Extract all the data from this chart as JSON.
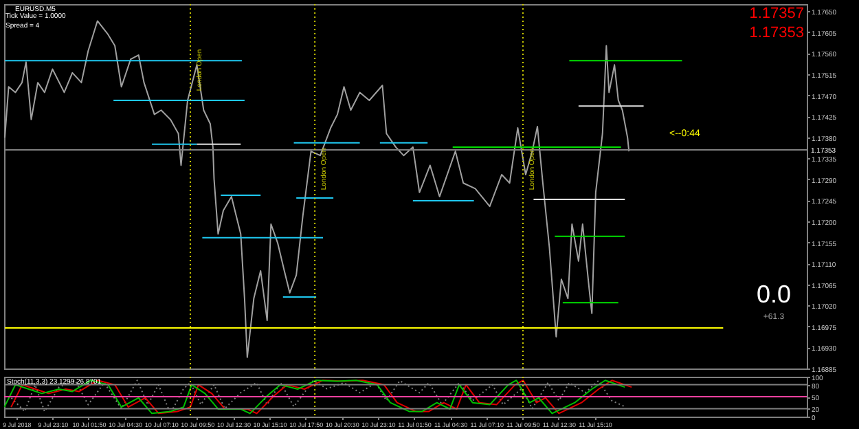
{
  "chart_data": [
    {
      "type": "line",
      "title": "EURUSD.M5",
      "annotations": [
        "Tick Value = 1.0000",
        "Spread = 4",
        "1.17357",
        "1.17353",
        "<--0:44",
        "0.0",
        "+61.3"
      ],
      "xlim": [
        "2018-07-09T19:36",
        "2018-07-12T06:48"
      ],
      "ylim": [
        1.16885,
        1.17665
      ],
      "yticks": [
        {
          "value": 1.1765,
          "label": "1.17650"
        },
        {
          "value": 1.17605,
          "label": "1.17605"
        },
        {
          "value": 1.1756,
          "label": "1.17560"
        },
        {
          "value": 1.17515,
          "label": "1.17515"
        },
        {
          "value": 1.1747,
          "label": "1.17470"
        },
        {
          "value": 1.17425,
          "label": "1.17425"
        },
        {
          "value": 1.1738,
          "label": "1.17380"
        },
        {
          "value": 1.17335,
          "label": "1.17335"
        },
        {
          "value": 1.1729,
          "label": "1.17290"
        },
        {
          "value": 1.17245,
          "label": "1.17245"
        },
        {
          "value": 1.172,
          "label": "1.17200"
        },
        {
          "value": 1.17155,
          "label": "1.17155"
        },
        {
          "value": 1.1711,
          "label": "1.17110"
        },
        {
          "value": 1.17065,
          "label": "1.17065"
        },
        {
          "value": 1.1702,
          "label": "1.17020"
        },
        {
          "value": 1.16975,
          "label": "1.16975"
        },
        {
          "value": 1.1693,
          "label": "1.16930"
        },
        {
          "value": 1.16885,
          "label": "1.16885"
        }
      ],
      "tick_labels": "y",
      "series": [
        {
          "color": "#a0a0a0",
          "x": [
            "2018-07-09T19:39",
            "2018-07-09T19:56",
            "2018-07-09T20:26",
            "2018-07-09T20:55",
            "2018-07-09T21:13",
            "2018-07-09T21:36",
            "2018-07-09T22:05",
            "2018-07-09T22:35",
            "2018-07-09T23:10",
            "2018-07-10T00:02",
            "2018-07-10T00:38",
            "2018-07-10T01:18",
            "2018-07-10T01:48",
            "2018-07-10T02:29",
            "2018-07-10T03:16",
            "2018-07-10T03:46",
            "2018-07-10T04:15",
            "2018-07-10T04:56",
            "2018-07-10T05:31",
            "2018-07-10T05:55",
            "2018-07-10T06:41",
            "2018-07-10T07:11",
            "2018-07-10T07:52",
            "2018-07-10T08:27",
            "2018-07-10T08:39",
            "2018-07-10T09:08",
            "2018-07-10T09:49",
            "2018-07-10T10:19",
            "2018-07-10T10:48",
            "2018-07-10T11:00",
            "2018-07-10T11:05",
            "2018-07-10T11:23",
            "2018-07-10T11:46",
            "2018-07-10T12:22",
            "2018-07-10T13:03",
            "2018-07-10T13:20",
            "2018-07-10T13:32",
            "2018-07-10T14:01",
            "2018-07-10T14:31",
            "2018-07-10T15:00",
            "2018-07-10T15:17",
            "2018-07-10T15:47",
            "2018-07-10T16:16",
            "2018-07-10T16:40",
            "2018-07-10T17:09",
            "2018-07-10T17:38",
            "2018-07-10T18:14",
            "2018-07-10T18:55",
            "2018-07-10T19:41",
            "2018-07-10T20:11",
            "2018-07-10T20:40",
            "2018-07-10T21:10",
            "2018-07-10T21:50",
            "2018-07-10T22:32",
            "2018-07-10T23:30",
            "2018-07-10T23:48",
            "2018-07-11T00:29",
            "2018-07-11T01:04",
            "2018-07-11T01:45",
            "2018-07-11T02:14",
            "2018-07-11T03:01",
            "2018-07-11T03:43",
            "2018-07-11T04:53",
            "2018-07-11T05:28",
            "2018-07-11T06:21",
            "2018-07-11T07:25",
            "2018-07-11T08:18",
            "2018-07-11T08:53",
            "2018-07-11T09:29",
            "2018-07-11T10:04",
            "2018-07-11T10:33",
            "2018-07-11T10:56",
            "2018-07-11T11:20",
            "2018-07-11T11:49",
            "2018-07-11T12:19",
            "2018-07-11T12:42",
            "2018-07-11T13:11",
            "2018-07-11T13:29",
            "2018-07-11T13:58",
            "2018-07-11T14:16",
            "2018-07-11T14:45",
            "2018-07-11T14:57",
            "2018-07-11T15:14",
            "2018-07-11T15:44",
            "2018-07-11T16:01",
            "2018-07-11T16:13",
            "2018-07-11T16:37",
            "2018-07-11T16:54",
            "2018-07-11T17:12",
            "2018-07-11T17:35",
            "2018-07-11T17:41"
          ],
          "values": [
            1.17379,
            1.17488,
            1.17476,
            1.17497,
            1.17541,
            1.17418,
            1.17497,
            1.17476,
            1.17526,
            1.17476,
            1.17518,
            1.17497,
            1.17565,
            1.17629,
            1.176,
            1.17576,
            1.17488,
            1.17547,
            1.17556,
            1.17497,
            1.17429,
            1.17438,
            1.17418,
            1.17388,
            1.1732,
            1.17459,
            1.17535,
            1.17438,
            1.17409,
            1.17359,
            1.17291,
            1.17173,
            1.17223,
            1.17253,
            1.17173,
            1.17035,
            1.16909,
            1.17035,
            1.17094,
            1.16988,
            1.17194,
            1.17153,
            1.17094,
            1.17047,
            1.17085,
            1.17212,
            1.1735,
            1.17341,
            1.174,
            1.17429,
            1.17488,
            1.17438,
            1.17476,
            1.17459,
            1.17491,
            1.17388,
            1.17359,
            1.17341,
            1.17359,
            1.17262,
            1.1732,
            1.17253,
            1.1735,
            1.17282,
            1.1727,
            1.17232,
            1.173,
            1.17282,
            1.174,
            1.173,
            1.1735,
            1.17403,
            1.17282,
            1.17144,
            1.16953,
            1.17076,
            1.17035,
            1.17194,
            1.17115,
            1.17194,
            1.17056,
            1.17003,
            1.17262,
            1.17388,
            1.17576,
            1.17476,
            1.17535,
            1.17459,
            1.17438,
            1.17379,
            1.1735
          ]
        },
        {
          "color": "#1ec8f0",
          "x": [
            "2018-07-09T19:39",
            "2018-07-10T13:08"
          ],
          "values": [
            1.17544,
            1.17544
          ]
        },
        {
          "color": "#1ec8f0",
          "x": [
            "2018-07-10T03:40",
            "2018-07-10T13:20"
          ],
          "values": [
            1.17459,
            1.17459
          ]
        },
        {
          "color": "#1ec8f0",
          "x": [
            "2018-07-10T06:30",
            "2018-07-10T09:49"
          ],
          "values": [
            1.17365,
            1.17365
          ]
        },
        {
          "color": "#e0e0e0",
          "x": [
            "2018-07-10T09:49",
            "2018-07-10T13:03"
          ],
          "values": [
            1.17365,
            1.17365
          ]
        },
        {
          "color": "#1ec8f0",
          "x": [
            "2018-07-10T11:35",
            "2018-07-10T14:31"
          ],
          "values": [
            1.17256,
            1.17256
          ]
        },
        {
          "color": "#1ec8f0",
          "x": [
            "2018-07-10T10:13",
            "2018-07-10T19:07"
          ],
          "values": [
            1.17165,
            1.17165
          ]
        },
        {
          "color": "#1ec8f0",
          "x": [
            "2018-07-10T16:10",
            "2018-07-10T18:37"
          ],
          "values": [
            1.17038,
            1.17038
          ]
        },
        {
          "color": "#1ec8f0",
          "x": [
            "2018-07-10T17:09",
            "2018-07-10T19:53"
          ],
          "values": [
            1.1725,
            1.1725
          ]
        },
        {
          "color": "#1ec8f0",
          "x": [
            "2018-07-10T16:58",
            "2018-07-10T21:50"
          ],
          "values": [
            1.17368,
            1.17368
          ]
        },
        {
          "color": "#1ec8f0",
          "x": [
            "2018-07-10T23:19",
            "2018-07-11T02:50"
          ],
          "values": [
            1.17368,
            1.17368
          ]
        },
        {
          "color": "#1ec8f0",
          "x": [
            "2018-07-11T01:45",
            "2018-07-11T06:15"
          ],
          "values": [
            1.17244,
            1.17244
          ]
        },
        {
          "color": "#00e000",
          "x": [
            "2018-07-11T04:41",
            "2018-07-11T17:06"
          ],
          "values": [
            1.17359,
            1.17359
          ]
        },
        {
          "color": "#00e000",
          "x": [
            "2018-07-11T13:17",
            "2018-07-11T21:36"
          ],
          "values": [
            1.17544,
            1.17544
          ]
        },
        {
          "color": "#e0e0e0",
          "x": [
            "2018-07-11T13:58",
            "2018-07-11T18:46"
          ],
          "values": [
            1.17447,
            1.17447
          ]
        },
        {
          "color": "#e0e0e0",
          "x": [
            "2018-07-11T10:39",
            "2018-07-11T17:23"
          ],
          "values": [
            1.17247,
            1.17247
          ]
        },
        {
          "color": "#00e000",
          "x": [
            "2018-07-11T12:13",
            "2018-07-11T17:23"
          ],
          "values": [
            1.17168,
            1.17168
          ]
        },
        {
          "color": "#00e000",
          "x": [
            "2018-07-11T12:48",
            "2018-07-11T16:54"
          ],
          "values": [
            1.17026,
            1.17026
          ]
        },
        {
          "color": "#ffff00",
          "x": [
            "2018-07-09T19:39",
            "2018-07-12T00:38"
          ],
          "values": [
            1.16972,
            1.16972
          ]
        }
      ],
      "ref_lines": [
        {
          "axis": "y",
          "value": 1.17353,
          "label": "1.17353",
          "color": "#808080"
        },
        {
          "axis": "x",
          "value": "2018-07-10T09:20",
          "label": "London Open",
          "color": "#c8c800",
          "line_style": "dotted"
        },
        {
          "axis": "x",
          "value": "2018-07-10T18:31",
          "label": "London Open",
          "color": "#c8c800",
          "line_style": "dotted"
        },
        {
          "axis": "x",
          "value": "2018-07-11T09:52",
          "label": "London Open",
          "color": "#c8c800",
          "line_style": "dotted"
        }
      ]
    },
    {
      "type": "line",
      "title": "Stoch(11,3,3) 23.1299 26.8701",
      "xlim": [
        "2018-07-09T19:36",
        "2018-07-12T06:48"
      ],
      "ylim": [
        0,
        100
      ],
      "yticks": [
        0,
        20,
        50,
        80,
        100
      ],
      "xticks": [
        {
          "value": "2018-07-09T20:30",
          "label": "9 Jul 2018"
        },
        {
          "value": "2018-07-09T23:10",
          "label": "9 Jul 23:10"
        },
        {
          "value": "2018-07-10T01:50",
          "label": "10 Jul 01:50"
        },
        {
          "value": "2018-07-10T04:30",
          "label": "10 Jul 04:30"
        },
        {
          "value": "2018-07-10T07:10",
          "label": "10 Jul 07:10"
        },
        {
          "value": "2018-07-10T09:50",
          "label": "10 Jul 09:50"
        },
        {
          "value": "2018-07-10T12:30",
          "label": "10 Jul 12:30"
        },
        {
          "value": "2018-07-10T15:10",
          "label": "10 Jul 15:10"
        },
        {
          "value": "2018-07-10T17:50",
          "label": "10 Jul 17:50"
        },
        {
          "value": "2018-07-10T20:30",
          "label": "10 Jul 20:30"
        },
        {
          "value": "2018-07-10T23:10",
          "label": "10 Jul 23:10"
        },
        {
          "value": "2018-07-11T01:50",
          "label": "11 Jul 01:50"
        },
        {
          "value": "2018-07-11T04:30",
          "label": "11 Jul 04:30"
        },
        {
          "value": "2018-07-11T07:10",
          "label": "11 Jul 07:10"
        },
        {
          "value": "2018-07-11T09:50",
          "label": "11 Jul 09:50"
        },
        {
          "value": "2018-07-11T12:30",
          "label": "11 Jul 12:30"
        },
        {
          "value": "2018-07-11T15:10",
          "label": "11 Jul 15:10"
        }
      ],
      "series": [
        {
          "color": "#808080",
          "line_style": "dotted",
          "x": [
            "2018-07-09T20:08",
            "2018-07-09T21:07",
            "2018-07-09T21:53",
            "2018-07-09T22:35",
            "2018-07-09T23:39",
            "2018-07-10T00:50",
            "2018-07-10T01:48",
            "2018-07-10T02:59",
            "2018-07-10T04:15",
            "2018-07-10T05:25",
            "2018-07-10T06:12",
            "2018-07-10T06:59",
            "2018-07-10T07:52",
            "2018-07-10T08:50",
            "2018-07-10T09:20",
            "2018-07-10T10:07",
            "2018-07-10T11:05",
            "2018-07-10T11:52",
            "2018-07-10T13:03",
            "2018-07-10T14:13",
            "2018-07-10T15:00",
            "2018-07-10T15:59",
            "2018-07-10T16:58",
            "2018-07-10T18:25",
            "2018-07-10T19:24",
            "2018-07-10T20:40",
            "2018-07-10T21:50",
            "2018-07-10T23:01",
            "2018-07-10T23:48",
            "2018-07-11T00:47",
            "2018-07-11T02:14",
            "2018-07-11T02:56",
            "2018-07-11T03:54",
            "2018-07-11T05:10",
            "2018-07-11T06:09",
            "2018-07-11T07:37",
            "2018-07-11T08:24",
            "2018-07-11T09:46",
            "2018-07-11T10:33",
            "2018-07-11T11:43",
            "2018-07-11T12:31",
            "2018-07-11T13:17",
            "2018-07-11T14:28",
            "2018-07-11T15:26",
            "2018-07-11T16:25",
            "2018-07-11T17:23"
          ],
          "values": [
            47,
            13,
            80,
            13,
            74,
            91,
            30,
            85,
            20,
            91,
            30,
            80,
            8,
            70,
            85,
            30,
            80,
            20,
            60,
            85,
            30,
            85,
            25,
            91,
            70,
            85,
            60,
            85,
            40,
            90,
            60,
            85,
            30,
            85,
            40,
            80,
            30,
            70,
            20,
            85,
            40,
            85,
            60,
            90,
            40,
            25
          ]
        },
        {
          "color": "#e00000",
          "x": [
            "2018-07-09T20:07",
            "2018-07-09T20:56",
            "2018-07-09T21:55",
            "2018-07-09T22:53",
            "2018-07-10T00:09",
            "2018-07-10T01:08",
            "2018-07-10T02:30",
            "2018-07-10T03:46",
            "2018-07-10T04:45",
            "2018-07-10T06:01",
            "2018-07-10T07:00",
            "2018-07-10T08:22",
            "2018-07-10T09:20",
            "2018-07-10T09:56",
            "2018-07-10T10:55",
            "2018-07-10T11:53",
            "2018-07-10T13:33",
            "2018-07-10T14:14",
            "2018-07-10T15:30",
            "2018-07-10T16:29",
            "2018-07-10T17:45",
            "2018-07-10T19:07",
            "2018-07-10T20:41",
            "2018-07-10T22:03",
            "2018-07-10T23:37",
            "2018-07-11T00:35",
            "2018-07-11T01:58",
            "2018-07-11T02:56",
            "2018-07-11T04:01",
            "2018-07-11T04:59",
            "2018-07-11T05:40",
            "2018-07-11T06:39",
            "2018-07-11T07:55",
            "2018-07-11T09:17",
            "2018-07-11T09:53",
            "2018-07-11T10:52",
            "2018-07-11T11:32",
            "2018-07-11T12:31",
            "2018-07-11T14:11",
            "2018-07-11T15:27",
            "2018-07-11T16:26",
            "2018-07-11T17:53"
          ],
          "values": [
            24,
            80,
            69,
            58,
            69,
            63,
            91,
            80,
            24,
            47,
            8,
            13,
            24,
            80,
            58,
            19,
            19,
            8,
            52,
            80,
            69,
            91,
            89,
            91,
            80,
            35,
            13,
            13,
            35,
            19,
            80,
            35,
            30,
            80,
            91,
            35,
            47,
            8,
            35,
            69,
            91,
            74
          ]
        },
        {
          "color": "#00c000",
          "x": [
            "2018-07-09T19:37",
            "2018-07-09T20:26",
            "2018-07-09T21:25",
            "2018-07-09T22:23",
            "2018-07-09T23:39",
            "2018-07-10T00:38",
            "2018-07-10T02:00",
            "2018-07-10T03:16",
            "2018-07-10T04:15",
            "2018-07-10T05:31",
            "2018-07-10T06:30",
            "2018-07-10T07:52",
            "2018-07-10T08:50",
            "2018-07-10T09:26",
            "2018-07-10T10:25",
            "2018-07-10T11:23",
            "2018-07-10T13:03",
            "2018-07-10T13:44",
            "2018-07-10T15:00",
            "2018-07-10T15:59",
            "2018-07-10T17:15",
            "2018-07-10T18:37",
            "2018-07-10T20:11",
            "2018-07-10T21:33",
            "2018-07-10T23:07",
            "2018-07-11T00:05",
            "2018-07-11T01:28",
            "2018-07-11T02:26",
            "2018-07-11T03:31",
            "2018-07-11T04:29",
            "2018-07-11T05:10",
            "2018-07-11T06:09",
            "2018-07-11T07:25",
            "2018-07-11T08:47",
            "2018-07-11T09:23",
            "2018-07-11T10:22",
            "2018-07-11T11:02",
            "2018-07-11T12:01",
            "2018-07-11T13:41",
            "2018-07-11T14:57",
            "2018-07-11T15:56",
            "2018-07-11T17:23"
          ],
          "values": [
            24,
            80,
            69,
            58,
            69,
            63,
            91,
            80,
            24,
            47,
            8,
            13,
            24,
            80,
            58,
            19,
            19,
            8,
            52,
            80,
            69,
            91,
            89,
            91,
            80,
            35,
            13,
            13,
            35,
            19,
            80,
            35,
            30,
            80,
            91,
            35,
            47,
            8,
            35,
            69,
            91,
            74
          ]
        }
      ],
      "ref_lines": [
        {
          "axis": "y",
          "value": 80,
          "color": "#808080"
        },
        {
          "axis": "y",
          "value": 50,
          "color": "#ff40a0"
        },
        {
          "axis": "y",
          "value": 20,
          "color": "#808080"
        },
        {
          "axis": "x",
          "value": "2018-07-10T09:20",
          "color": "#c8c800",
          "line_style": "dotted"
        },
        {
          "axis": "x",
          "value": "2018-07-10T18:31",
          "color": "#c8c800",
          "line_style": "dotted"
        },
        {
          "axis": "x",
          "value": "2018-07-11T09:52",
          "color": "#c8c800",
          "line_style": "dotted"
        }
      ]
    }
  ]
}
